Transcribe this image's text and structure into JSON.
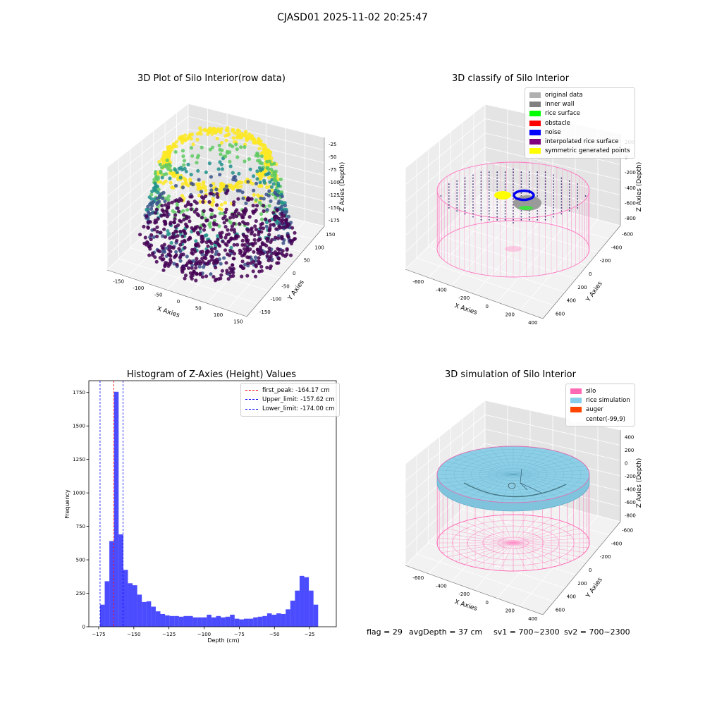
{
  "figure": {
    "title": "CJASD01 2025-11-02 20:25:47"
  },
  "panels": {
    "raw": {
      "title": "3D Plot of Silo Interior(row data)",
      "xlabel": "X Axies",
      "ylabel": "Y Axies",
      "zlabel": "Z Axies (Depth)",
      "xticks": [
        "-150",
        "-100",
        "-50",
        "0",
        "50",
        "100",
        "150"
      ],
      "yticks": [
        "-150",
        "-100",
        "-50",
        "0",
        "50",
        "100",
        "150"
      ],
      "zticks": [
        "-25",
        "-50",
        "-75",
        "-100",
        "-125",
        "-150",
        "-175"
      ],
      "colormap": [
        "#440154",
        "#3b528b",
        "#21918c",
        "#5ec962",
        "#fde725"
      ]
    },
    "classify": {
      "title": "3D classify of Silo Interior",
      "xlabel": "X Axies",
      "ylabel": "Y Axies",
      "zlabel": "Z Axies (Depth)",
      "xticks": [
        "-600",
        "-400",
        "-200",
        "0",
        "200",
        "400"
      ],
      "yticks": [
        "600",
        "400",
        "200",
        "0",
        "-200",
        "-400",
        "-600"
      ],
      "zticks": [
        "200",
        "0",
        "-200",
        "-400",
        "-600",
        "-800"
      ],
      "legend": [
        {
          "label": "original data",
          "color": "#b0b0b0"
        },
        {
          "label": "inner wall",
          "color": "#808080"
        },
        {
          "label": "rice surface",
          "color": "#00ff00"
        },
        {
          "label": "obstacle",
          "color": "#ff0000"
        },
        {
          "label": "noise",
          "color": "#0000ff"
        },
        {
          "label": "interpolated rice surface",
          "color": "#800080"
        },
        {
          "label": "symmetric generated points",
          "color": "#ffff00"
        }
      ]
    },
    "histogram": {
      "title": "Histogram of Z-Axies (Height) Values",
      "xlabel": "Depth (cm)",
      "ylabel": "Frequency",
      "legend": [
        {
          "label": "first_peak: -164.17 cm",
          "color": "#ff0000"
        },
        {
          "label": "Upper_limit: -157.62 cm",
          "color": "#0000ff"
        },
        {
          "label": "Lower_limit: -174.00 cm",
          "color": "#0000ff"
        }
      ]
    },
    "simulation": {
      "title": "3D simulation of Silo Interior",
      "xlabel": "X Axies",
      "ylabel": "Y Axies",
      "zlabel": "Z Axies (Depth)",
      "xticks": [
        "-600",
        "-400",
        "-200",
        "0",
        "200",
        "400"
      ],
      "yticks": [
        "600",
        "400",
        "200",
        "0",
        "-200",
        "-400",
        "-600"
      ],
      "zticks": [
        "400",
        "200",
        "0",
        "-200",
        "-400",
        "-600",
        "-800"
      ],
      "legend": [
        {
          "label": "silo",
          "color": "#ff69b4"
        },
        {
          "label": "rice simulation",
          "color": "#87ceeb"
        },
        {
          "label": "auger",
          "color": "#ff4500"
        },
        {
          "label": "center(-99,9)",
          "color": "#ffffff"
        }
      ]
    }
  },
  "status": {
    "flag": "flag = 29",
    "avg_depth": "avgDepth = 37 cm",
    "sv1": "sv1 = 700~2300",
    "sv2": "sv2 = 700~2300"
  },
  "chart_data": {
    "type": "bar",
    "title": "Histogram of Z-Axies (Height) Values",
    "xlabel": "Depth (cm)",
    "ylabel": "Frequency",
    "xlim": [
      -182,
      -6
    ],
    "ylim": [
      0,
      1838
    ],
    "xticks": [
      -175,
      -150,
      -125,
      -100,
      -75,
      -50,
      -25
    ],
    "yticks": [
      0,
      250,
      500,
      750,
      1000,
      1250,
      1500,
      1750
    ],
    "bin_start": -174.0,
    "bin_width": 3.3,
    "values": [
      165,
      340,
      640,
      1755,
      690,
      425,
      325,
      310,
      240,
      185,
      190,
      150,
      115,
      95,
      85,
      80,
      80,
      75,
      80,
      80,
      70,
      70,
      70,
      90,
      70,
      80,
      70,
      75,
      90,
      60,
      55,
      60,
      60,
      70,
      75,
      80,
      100,
      90,
      100,
      95,
      130,
      195,
      270,
      380,
      370,
      270,
      165
    ],
    "bar_color": "#0000ff",
    "vlines": [
      {
        "name": "first_peak",
        "x": -164.17,
        "color": "#ff0000"
      },
      {
        "name": "Upper_limit",
        "x": -157.62,
        "color": "#0000ff"
      },
      {
        "name": "Lower_limit",
        "x": -174.0,
        "color": "#0000ff"
      }
    ],
    "legend_position": "top-right"
  }
}
